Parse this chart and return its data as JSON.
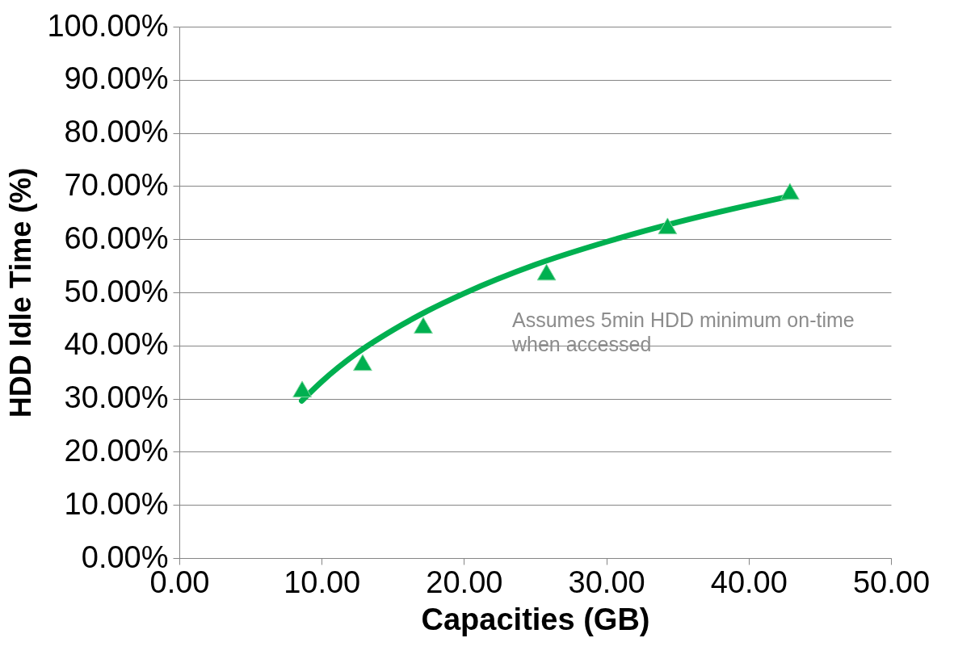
{
  "chart_data": {
    "type": "scatter",
    "xlabel": "Capacities (GB)",
    "ylabel": "HDD Idle Time (%)",
    "series": [
      {
        "type": "scatter",
        "color": "#00b050",
        "marker": "triangle",
        "x": [
          8.63,
          12.88,
          17.14,
          25.8,
          34.3,
          42.9
        ],
        "values": [
          31.8,
          36.8,
          43.8,
          53.8,
          62.5,
          69.0
        ]
      },
      {
        "type": "line",
        "color": "#00b050",
        "line_style": "solid",
        "x": [
          8.6,
          10,
          12.5,
          15,
          17.5,
          20,
          25,
          30,
          35,
          40,
          42.9
        ],
        "values": [
          29.6,
          33.2,
          38.6,
          42.9,
          46.6,
          49.8,
          55.2,
          59.5,
          63.2,
          66.4,
          68.1
        ]
      }
    ],
    "xlim": [
      0,
      50
    ],
    "ylim": [
      0,
      100
    ],
    "xticks": [
      {
        "value": 0,
        "label": "0.00"
      },
      {
        "value": 10,
        "label": "10.00"
      },
      {
        "value": 20,
        "label": "20.00"
      },
      {
        "value": 30,
        "label": "30.00"
      },
      {
        "value": 40,
        "label": "40.00"
      },
      {
        "value": 50,
        "label": "50.00"
      }
    ],
    "yticks": [
      {
        "value": 0,
        "label": "0.00%"
      },
      {
        "value": 10,
        "label": "10.00%"
      },
      {
        "value": 20,
        "label": "20.00%"
      },
      {
        "value": 30,
        "label": "30.00%"
      },
      {
        "value": 40,
        "label": "40.00%"
      },
      {
        "value": 50,
        "label": "50.00%"
      },
      {
        "value": 60,
        "label": "60.00%"
      },
      {
        "value": 70,
        "label": "70.00%"
      },
      {
        "value": 80,
        "label": "80.00%"
      },
      {
        "value": 90,
        "label": "90.00%"
      },
      {
        "value": 100,
        "label": "100.00%"
      }
    ],
    "grid": "y",
    "annotations": [
      "Assumes 5min HDD minimum on-time when accessed"
    ]
  }
}
